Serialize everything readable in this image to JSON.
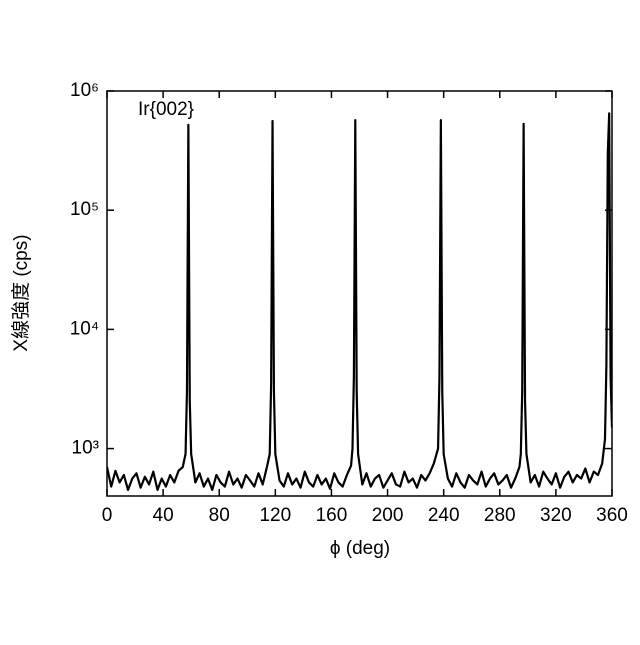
{
  "chart_data": {
    "type": "line",
    "x_label": "ϕ (deg)",
    "y_label": "X線強度 (cps)",
    "annotation": "Ir{002}",
    "log_scale_y": true,
    "color": "#000000",
    "xlim": [
      0,
      360
    ],
    "xticks": [
      0,
      40,
      80,
      120,
      160,
      200,
      240,
      280,
      320,
      360
    ],
    "ylim": [
      400,
      1000000
    ],
    "yticks": [
      {
        "value": 1000,
        "label": "10³"
      },
      {
        "value": 10000,
        "label": "10⁴"
      },
      {
        "value": 100000,
        "label": "10⁵"
      },
      {
        "value": 1000000,
        "label": "10⁶"
      }
    ],
    "x": [
      0,
      3,
      6,
      9,
      12,
      15,
      18,
      21,
      24,
      27,
      30,
      33,
      36,
      39,
      42,
      45,
      48,
      51,
      54,
      56,
      57,
      58,
      59,
      60,
      63,
      66,
      69,
      72,
      75,
      78,
      81,
      84,
      87,
      90,
      93,
      96,
      99,
      102,
      105,
      108,
      111,
      114,
      116,
      117,
      118,
      119,
      120,
      123,
      126,
      129,
      132,
      135,
      138,
      141,
      144,
      147,
      150,
      153,
      156,
      159,
      162,
      165,
      168,
      171,
      174,
      175,
      176,
      177,
      178,
      179,
      182,
      185,
      188,
      191,
      194,
      197,
      200,
      203,
      206,
      209,
      212,
      215,
      218,
      221,
      224,
      227,
      230,
      233,
      236,
      237,
      238,
      239,
      240,
      243,
      246,
      249,
      252,
      255,
      258,
      261,
      264,
      267,
      270,
      273,
      276,
      279,
      282,
      285,
      288,
      291,
      294,
      295,
      296,
      297,
      298,
      299,
      302,
      305,
      308,
      311,
      314,
      317,
      320,
      323,
      326,
      329,
      332,
      335,
      338,
      341,
      344,
      347,
      350,
      353,
      355,
      356,
      357,
      358,
      359,
      360
    ],
    "values": [
      700,
      480,
      650,
      520,
      600,
      450,
      560,
      620,
      470,
      580,
      500,
      640,
      450,
      560,
      480,
      600,
      520,
      650,
      700,
      900,
      3000,
      520000,
      2500,
      900,
      520,
      620,
      480,
      560,
      450,
      600,
      520,
      480,
      640,
      500,
      560,
      470,
      600,
      540,
      480,
      620,
      500,
      700,
      900,
      3500,
      560000,
      3000,
      900,
      540,
      480,
      620,
      500,
      560,
      470,
      640,
      520,
      480,
      600,
      500,
      560,
      460,
      620,
      520,
      480,
      600,
      720,
      1000,
      4000,
      570000,
      3000,
      900,
      500,
      620,
      480,
      560,
      600,
      470,
      540,
      620,
      500,
      480,
      640,
      520,
      560,
      470,
      600,
      540,
      620,
      750,
      1000,
      4000,
      570000,
      3000,
      900,
      560,
      480,
      620,
      520,
      470,
      600,
      540,
      500,
      640,
      480,
      560,
      620,
      500,
      540,
      600,
      470,
      560,
      700,
      900,
      3000,
      530000,
      2500,
      900,
      520,
      600,
      480,
      640,
      560,
      500,
      620,
      470,
      580,
      640,
      520,
      600,
      560,
      680,
      520,
      640,
      600,
      750,
      1200,
      5000,
      300000,
      650000,
      4000,
      1500
    ]
  }
}
